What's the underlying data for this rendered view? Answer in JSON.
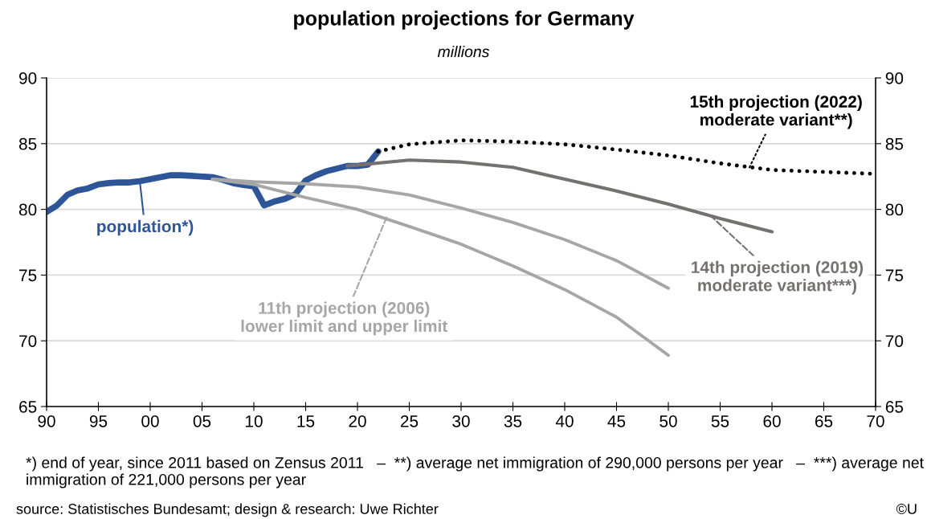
{
  "chart_data": {
    "type": "line",
    "title": "population projections for Germany",
    "subtitle": "millions",
    "x": [
      1990,
      1991,
      1992,
      1993,
      1994,
      1995,
      1996,
      1997,
      1998,
      1999,
      2000,
      2001,
      2002,
      2003,
      2004,
      2005,
      2006,
      2007,
      2008,
      2009,
      2010,
      2011,
      2012,
      2013,
      2014,
      2015,
      2016,
      2017,
      2018,
      2019,
      2020,
      2021,
      2022
    ],
    "series": [
      {
        "color": "#2e5597",
        "values": [
          79.8,
          80.3,
          81.1,
          81.45,
          81.6,
          81.9,
          82.0,
          82.05,
          82.05,
          82.15,
          82.3,
          82.45,
          82.6,
          82.6,
          82.55,
          82.5,
          82.45,
          82.25,
          82.0,
          81.85,
          81.75,
          80.3,
          80.6,
          80.8,
          81.15,
          82.2,
          82.6,
          82.9,
          83.1,
          83.3,
          83.3,
          83.4,
          84.4
        ]
      },
      {
        "color": "#a6a6a6",
        "x": [
          2006,
          2010,
          2015,
          2020,
          2025,
          2030,
          2035,
          2040,
          2045,
          2050
        ],
        "values": [
          82.3,
          81.9,
          80.9,
          80.0,
          78.7,
          77.35,
          75.7,
          73.9,
          71.8,
          68.9
        ]
      },
      {
        "color": "#a6a6a6",
        "x": [
          2006,
          2010,
          2015,
          2020,
          2025,
          2030,
          2035,
          2040,
          2045,
          2050
        ],
        "values": [
          82.3,
          82.1,
          81.95,
          81.7,
          81.1,
          80.1,
          79.0,
          77.7,
          76.1,
          74.0
        ]
      },
      {
        "color": "#767171",
        "x": [
          2019,
          2025,
          2030,
          2035,
          2040,
          2045,
          2050,
          2055,
          2060
        ],
        "values": [
          83.3,
          83.75,
          83.6,
          83.2,
          82.3,
          81.4,
          80.4,
          79.3,
          78.3
        ]
      },
      {
        "color": "#000000",
        "line_style": "dotted",
        "x": [
          2022,
          2025,
          2030,
          2035,
          2040,
          2045,
          2050,
          2055,
          2060,
          2065,
          2070
        ],
        "values": [
          84.4,
          84.95,
          85.25,
          85.15,
          84.95,
          84.55,
          84.1,
          83.5,
          83.0,
          82.85,
          82.7
        ]
      }
    ],
    "xlim": [
      1990,
      2070
    ],
    "xticks": [
      {
        "value": 1990,
        "label": "90"
      },
      {
        "value": 1995,
        "label": "95"
      },
      {
        "value": 2000,
        "label": "00"
      },
      {
        "value": 2005,
        "label": "05"
      },
      {
        "value": 2010,
        "label": "10"
      },
      {
        "value": 2015,
        "label": "15"
      },
      {
        "value": 2020,
        "label": "20"
      },
      {
        "value": 2025,
        "label": "25"
      },
      {
        "value": 2030,
        "label": "30"
      },
      {
        "value": 2035,
        "label": "35"
      },
      {
        "value": 2040,
        "label": "40"
      },
      {
        "value": 2045,
        "label": "45"
      },
      {
        "value": 2050,
        "label": "50"
      },
      {
        "value": 2055,
        "label": "55"
      },
      {
        "value": 2060,
        "label": "60"
      },
      {
        "value": 2065,
        "label": "65"
      },
      {
        "value": 2070,
        "label": "70"
      }
    ],
    "ylim": [
      65,
      90
    ],
    "yticks": [
      65,
      70,
      75,
      80,
      85,
      90
    ],
    "y2lim": [
      65,
      90
    ],
    "y2ticks": [
      65,
      70,
      75,
      80,
      85,
      90
    ],
    "grid": "y",
    "legend": false,
    "marker": "none",
    "annotations": [
      {
        "text": "population*)",
        "x": 1999,
        "y": 82.1
      },
      {
        "text": "15th projection (2022)\nmoderate variant**)",
        "x": 2057.8,
        "y": 83.15
      },
      {
        "text": "14th projection (2019)\nmoderate variant***)",
        "x": 2054.1,
        "y": 79.5
      },
      {
        "text": "11th projection (2006)\nlower limit and upper limit",
        "x": 2022.9,
        "y": 79.55
      },
      "*) end of year, since 2011 based on Zensus 2011   –  **) average net immigration of 290,000 persons per year   –  ***) average net immigration of 221,000 persons per year",
      "source: Statistisches Bundesamt; design & research: Uwe Richter",
      "©U"
    ]
  }
}
